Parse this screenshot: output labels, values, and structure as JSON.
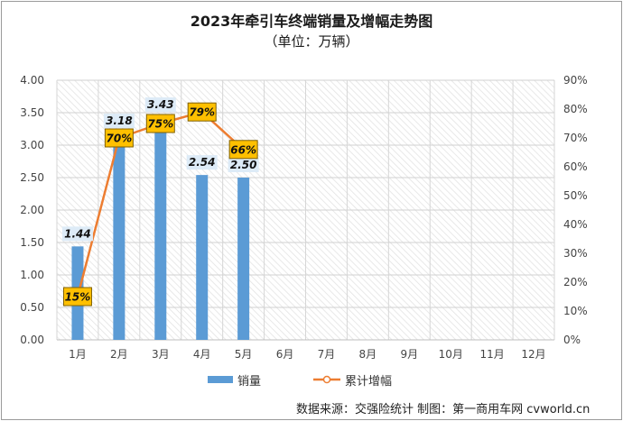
{
  "chart_data": {
    "type": "bar",
    "title": "2023年牵引车终端销量及增幅走势图",
    "subtitle": "（单位：万辆）",
    "categories": [
      "1月",
      "2月",
      "3月",
      "4月",
      "5月",
      "6月",
      "7月",
      "8月",
      "9月",
      "10月",
      "11月",
      "12月"
    ],
    "series": [
      {
        "name": "销量",
        "type": "bar",
        "axis": "left",
        "color": "#5b9bd5",
        "values": [
          1.44,
          3.18,
          3.43,
          2.54,
          2.5,
          null,
          null,
          null,
          null,
          null,
          null,
          null
        ],
        "labels": [
          "1.44",
          "3.18",
          "3.43",
          "2.54",
          "2.50"
        ]
      },
      {
        "name": "累计增幅",
        "type": "line",
        "axis": "right",
        "color": "#ed7d31",
        "values": [
          15,
          70,
          75,
          79,
          66,
          null,
          null,
          null,
          null,
          null,
          null,
          null
        ],
        "labels": [
          "15%",
          "70%",
          "75%",
          "79%",
          "66%"
        ]
      }
    ],
    "y_left": {
      "min": 0,
      "max": 4,
      "step": 0.5,
      "ticks": [
        "0.00",
        "0.50",
        "1.00",
        "1.50",
        "2.00",
        "2.50",
        "3.00",
        "3.50",
        "4.00"
      ]
    },
    "y_right": {
      "min": 0,
      "max": 90,
      "step": 10,
      "ticks": [
        "0%",
        "10%",
        "20%",
        "30%",
        "40%",
        "50%",
        "60%",
        "70%",
        "80%",
        "90%"
      ]
    },
    "grid": true,
    "legend": "bottom",
    "source_note": "数据来源：交强险统计   制图：第一商用车网 cvworld.cn"
  }
}
